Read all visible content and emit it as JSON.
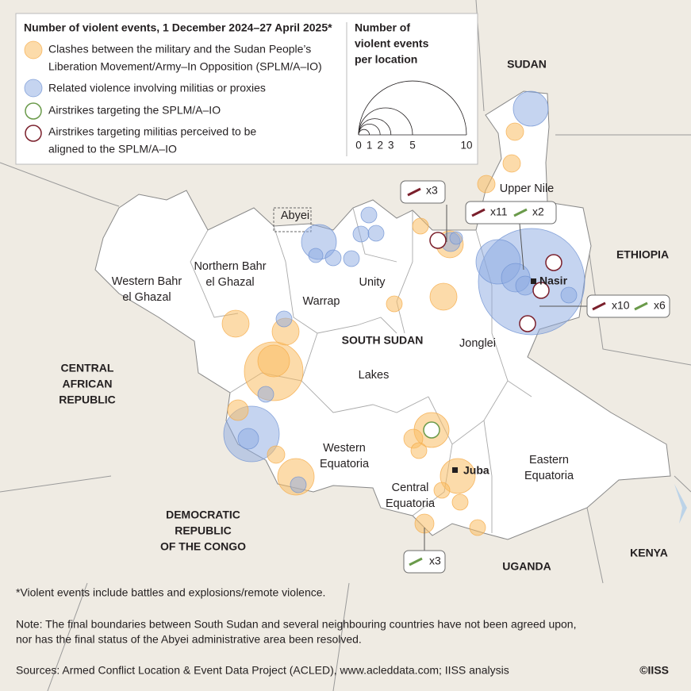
{
  "legend": {
    "title": "Number of violent events, 1 December 2024–27 April 2025*",
    "items": [
      [
        "Clashes between the military and the Sudan People’s",
        "Liberation Movement/Army–In Opposition (SPLM/A–IO)"
      ],
      [
        "Related violence involving militias or proxies"
      ],
      [
        "Airstrikes targeting the SPLM/A–IO"
      ],
      [
        "Airstrikes targeting militias perceived to be",
        "aligned to the SPLM/A–IO"
      ]
    ],
    "size_title": [
      "Number of",
      "violent events",
      "per location"
    ],
    "size_ticks": [
      0,
      1,
      2,
      3,
      5,
      10
    ]
  },
  "countries": [
    [
      "SUDAN"
    ],
    [
      "ETHIOPIA"
    ],
    [
      "CENTRAL",
      "AFRICAN",
      "REPUBLIC"
    ],
    [
      "DEMOCRATIC",
      "REPUBLIC",
      "OF THE CONGO"
    ],
    [
      "UGANDA"
    ],
    [
      "KENYA"
    ],
    [
      "SOUTH SUDAN"
    ]
  ],
  "states": [
    [
      "Upper Nile"
    ],
    [
      "Abyei"
    ],
    [
      "Northern Bahr",
      "el Ghazal"
    ],
    [
      "Western Bahr",
      "el Ghazal"
    ],
    [
      "Unity"
    ],
    [
      "Warrap"
    ],
    [
      "Jonglei"
    ],
    [
      "Lakes"
    ],
    [
      "Western",
      "Equatoria"
    ],
    [
      "Central",
      "Equatoria"
    ],
    [
      "Eastern",
      "Equatoria"
    ]
  ],
  "cities": [
    "Nasir",
    "Juba"
  ],
  "callouts": [
    "x3",
    "x11",
    "x2",
    "x10",
    "x6",
    "x3"
  ],
  "notes": {
    "footnote": "*Violent events include battles and explosions/remote violence.",
    "note": [
      "Note: The final boundaries between South Sudan and several neighbouring countries have not been agreed upon,",
      "nor has the final status of the Abyei administrative area been resolved."
    ],
    "sources": "Sources: Armed Conflict Location & Event Data Project (ACLED), www.acleddata.com; IISS analysis",
    "copyright": "©IISS"
  }
}
